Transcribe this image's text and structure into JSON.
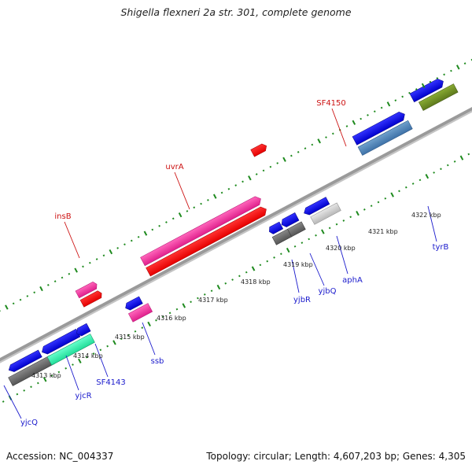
{
  "title": "Shigella flexneri 2a str. 301, complete genome",
  "footer": {
    "accession": "Accession: NC_004337",
    "summary": "Topology: circular; Length: 4,607,203 bp; Genes: 4,305"
  },
  "colors": {
    "backbone": "#8c8c8c",
    "dots": "#1e8a1e",
    "label_blue": "#1a1acc",
    "label_red": "#cc1111"
  },
  "scale_ticks": [
    "4313 kbp",
    "4314 kbp",
    "4315 kbp",
    "4316 kbp",
    "4317 kbp",
    "4318 kbp",
    "4319 kbp",
    "4320 kbp",
    "4321 kbp",
    "4322 kbp"
  ],
  "genes": [
    {
      "name": "insB",
      "color": "red"
    },
    {
      "name": "uvrA",
      "color": "red"
    },
    {
      "name": "SF4150",
      "color": "red"
    },
    {
      "name": "ssb",
      "color": "blue"
    },
    {
      "name": "yjcQ",
      "color": "blue"
    },
    {
      "name": "yjcR",
      "color": "blue"
    },
    {
      "name": "SF4143",
      "color": "blue"
    },
    {
      "name": "yjbR",
      "color": "blue"
    },
    {
      "name": "yjbQ",
      "color": "blue"
    },
    {
      "name": "aphA",
      "color": "blue"
    },
    {
      "name": "tyrB",
      "color": "blue"
    }
  ]
}
